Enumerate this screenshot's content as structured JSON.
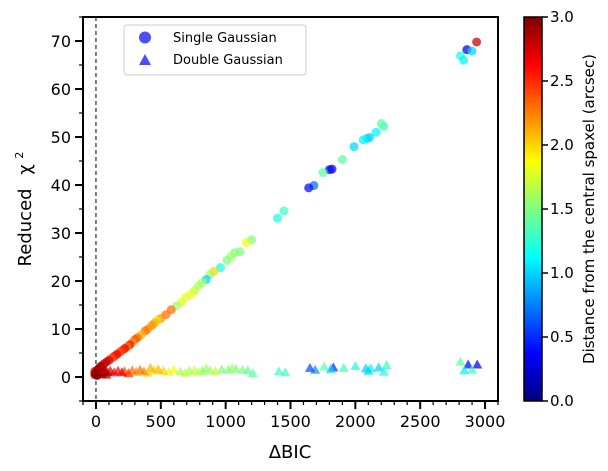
{
  "chart_data": {
    "type": "scatter",
    "xlabel": "ΔBIC",
    "ylabel_main": "Reduced",
    "ylabel_chi": "χ",
    "ylabel_sup": "2",
    "xlim": [
      -100,
      3100
    ],
    "ylim": [
      -5,
      75
    ],
    "xticks": [
      0,
      500,
      1000,
      1500,
      2000,
      2500,
      3000
    ],
    "yticks": [
      0,
      10,
      20,
      30,
      40,
      50,
      60,
      70
    ],
    "vline_x": 0,
    "legend": {
      "placement": "top-left",
      "entries": [
        {
          "label": "Single Gaussian",
          "marker": "circle"
        },
        {
          "label": "Double Gaussian",
          "marker": "triangle"
        }
      ]
    },
    "colorbar": {
      "label": "Distance from the central spaxel (arcsec)",
      "range": [
        0.0,
        3.0
      ],
      "ticks": [
        "0.0",
        "0.5",
        "1.0",
        "1.5",
        "2.0",
        "2.5",
        "3.0"
      ],
      "colormap": [
        "#00007f",
        "#0000ff",
        "#007fff",
        "#00ffff",
        "#7fff7f",
        "#ffff00",
        "#ff7f00",
        "#ff0000",
        "#7f0000"
      ]
    },
    "series": [
      {
        "name": "Single Gaussian",
        "marker": "circle",
        "points": [
          [
            2935,
            69.8,
            2.8
          ],
          [
            2860,
            68.2,
            0.3
          ],
          [
            2900,
            67.9,
            1.0
          ],
          [
            2810,
            66.9,
            1.2
          ],
          [
            2835,
            66.0,
            1.1
          ],
          [
            2220,
            52.2,
            1.3
          ],
          [
            2200,
            52.8,
            1.4
          ],
          [
            2160,
            51.0,
            1.1
          ],
          [
            2110,
            49.9,
            1.0
          ],
          [
            2090,
            49.7,
            1.0
          ],
          [
            2060,
            49.4,
            1.1
          ],
          [
            1990,
            48.0,
            1.0
          ],
          [
            1900,
            45.3,
            1.4
          ],
          [
            1820,
            43.3,
            0.3
          ],
          [
            1800,
            43.2,
            0.4
          ],
          [
            1750,
            42.6,
            1.4
          ],
          [
            1680,
            39.9,
            0.7
          ],
          [
            1640,
            39.4,
            0.4
          ],
          [
            1450,
            34.6,
            1.3
          ],
          [
            1400,
            33.1,
            1.2
          ],
          [
            1200,
            28.6,
            1.5
          ],
          [
            1160,
            28.0,
            1.8
          ],
          [
            1110,
            26.1,
            1.5
          ],
          [
            1070,
            25.9,
            1.5
          ],
          [
            1040,
            25.1,
            1.6
          ],
          [
            1010,
            24.3,
            1.5
          ],
          [
            960,
            22.8,
            1.2
          ],
          [
            910,
            22.0,
            2.0
          ],
          [
            880,
            21.4,
            1.6
          ],
          [
            850,
            20.3,
            1.0
          ],
          [
            820,
            19.7,
            1.6
          ],
          [
            790,
            19.0,
            1.6
          ],
          [
            760,
            18.0,
            1.7
          ],
          [
            730,
            17.2,
            1.8
          ],
          [
            690,
            16.6,
            1.8
          ],
          [
            660,
            15.6,
            1.8
          ],
          [
            620,
            14.8,
            1.6
          ],
          [
            580,
            14.0,
            2.3
          ],
          [
            540,
            13.0,
            2.3
          ],
          [
            500,
            12.2,
            2.2
          ],
          [
            470,
            11.8,
            2.0
          ],
          [
            450,
            11.2,
            2.1
          ],
          [
            430,
            10.7,
            2.2
          ],
          [
            400,
            10.0,
            2.2
          ],
          [
            380,
            9.6,
            2.3
          ],
          [
            350,
            8.8,
            2.1
          ],
          [
            320,
            8.2,
            2.3
          ],
          [
            300,
            7.8,
            2.4
          ],
          [
            280,
            7.2,
            2.2
          ],
          [
            260,
            6.7,
            2.6
          ],
          [
            240,
            6.3,
            2.3
          ],
          [
            220,
            5.9,
            2.7
          ],
          [
            200,
            5.5,
            2.5
          ],
          [
            180,
            5.1,
            2.4
          ],
          [
            160,
            4.7,
            2.7
          ],
          [
            140,
            4.3,
            2.6
          ],
          [
            120,
            3.9,
            2.4
          ],
          [
            100,
            3.5,
            2.7
          ],
          [
            80,
            3.1,
            2.8
          ],
          [
            60,
            2.7,
            2.8
          ],
          [
            40,
            2.3,
            2.9
          ],
          [
            30,
            2.0,
            2.9
          ],
          [
            20,
            1.7,
            2.9
          ],
          [
            10,
            1.4,
            3.0
          ],
          [
            5,
            1.1,
            2.9
          ],
          [
            0,
            0.9,
            3.0
          ],
          [
            -5,
            0.6,
            2.9
          ],
          [
            -10,
            0.8,
            2.7
          ],
          [
            12,
            0.5,
            3.0
          ],
          [
            25,
            1.0,
            2.9
          ],
          [
            -8,
            1.2,
            2.8
          ],
          [
            18,
            0.7,
            3.0
          ],
          [
            8,
            0.3,
            3.0
          ],
          [
            35,
            1.4,
            2.8
          ],
          [
            50,
            1.8,
            2.8
          ]
        ]
      },
      {
        "name": "Double Gaussian",
        "marker": "triangle",
        "points": [
          [
            2940,
            2.6,
            0.3
          ],
          [
            2870,
            2.6,
            0.4
          ],
          [
            2900,
            1.5,
            1.3
          ],
          [
            2810,
            3.2,
            1.4
          ],
          [
            2840,
            1.4,
            1.1
          ],
          [
            2240,
            2.5,
            1.3
          ],
          [
            2220,
            1.1,
            1.2
          ],
          [
            2180,
            2.0,
            1.0
          ],
          [
            2120,
            1.8,
            1.1
          ],
          [
            2100,
            1.3,
            1.0
          ],
          [
            2080,
            1.8,
            1.0
          ],
          [
            2000,
            2.3,
            1.2
          ],
          [
            1910,
            1.9,
            1.3
          ],
          [
            1830,
            2.0,
            0.5
          ],
          [
            1810,
            1.7,
            1.0
          ],
          [
            1760,
            2.2,
            1.4
          ],
          [
            1690,
            1.5,
            0.8
          ],
          [
            1650,
            1.9,
            0.6
          ],
          [
            1460,
            1.0,
            1.3
          ],
          [
            1410,
            1.2,
            1.3
          ],
          [
            1210,
            0.8,
            1.4
          ],
          [
            1170,
            1.4,
            1.4
          ],
          [
            1130,
            1.5,
            1.5
          ],
          [
            1080,
            1.7,
            1.5
          ],
          [
            1050,
            1.9,
            1.6
          ],
          [
            1020,
            1.5,
            1.5
          ],
          [
            970,
            1.6,
            1.5
          ],
          [
            920,
            1.2,
            1.7
          ],
          [
            880,
            1.4,
            1.6
          ],
          [
            850,
            1.8,
            1.6
          ],
          [
            820,
            1.3,
            1.5
          ],
          [
            790,
            1.1,
            1.7
          ],
          [
            760,
            1.4,
            1.7
          ],
          [
            720,
            1.3,
            1.6
          ],
          [
            690,
            0.9,
            1.7
          ],
          [
            650,
            1.2,
            1.6
          ],
          [
            600,
            1.5,
            1.9
          ],
          [
            560,
            1.1,
            1.8
          ],
          [
            520,
            1.3,
            2.0
          ],
          [
            480,
            1.6,
            2.1
          ],
          [
            450,
            1.4,
            2.0
          ],
          [
            420,
            1.9,
            2.1
          ],
          [
            400,
            0.9,
            2.0
          ],
          [
            370,
            1.2,
            2.2
          ],
          [
            340,
            1.5,
            2.3
          ],
          [
            310,
            1.1,
            2.2
          ],
          [
            280,
            1.4,
            2.3
          ],
          [
            250,
            0.8,
            2.5
          ],
          [
            220,
            1.2,
            2.4
          ],
          [
            200,
            1.0,
            2.7
          ],
          [
            170,
            1.3,
            2.6
          ],
          [
            140,
            1.0,
            2.6
          ],
          [
            110,
            1.3,
            2.7
          ],
          [
            90,
            1.0,
            2.8
          ],
          [
            70,
            1.2,
            2.8
          ],
          [
            50,
            0.9,
            2.9
          ],
          [
            30,
            1.1,
            2.9
          ],
          [
            15,
            0.7,
            3.0
          ],
          [
            0,
            0.5,
            3.0
          ],
          [
            -8,
            0.9,
            3.0
          ],
          [
            22,
            1.4,
            2.9
          ],
          [
            42,
            0.6,
            2.9
          ],
          [
            62,
            1.5,
            2.8
          ],
          [
            80,
            0.5,
            2.9
          ]
        ]
      }
    ]
  }
}
